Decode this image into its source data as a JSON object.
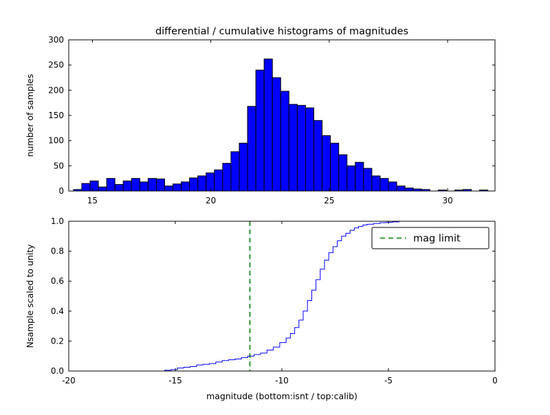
{
  "figure": {
    "background": "#ffffff"
  },
  "chart_data": [
    {
      "type": "bar",
      "subplot": "top",
      "title": "differential / cumulative histograms of magnitudes",
      "ylabel": "number of samples",
      "xlim": [
        14,
        32
      ],
      "ylim": [
        0,
        300
      ],
      "xtick_values": [
        15,
        20,
        25,
        30
      ],
      "xtick_labels": [
        "15",
        "20",
        "25",
        "30"
      ],
      "ytick_values": [
        0,
        50,
        100,
        150,
        200,
        250,
        300
      ],
      "ytick_labels": [
        "0",
        "50",
        "100",
        "150",
        "200",
        "250",
        "300"
      ],
      "grid": false,
      "bar_color": "#0000ff",
      "bar_edge_color": "#000000",
      "bin_width": 0.35,
      "bin_left_edges": [
        14.2,
        14.55,
        14.9,
        15.25,
        15.6,
        15.95,
        16.3,
        16.65,
        17.0,
        17.35,
        17.7,
        18.05,
        18.4,
        18.75,
        19.1,
        19.45,
        19.8,
        20.15,
        20.5,
        20.85,
        21.2,
        21.55,
        21.9,
        22.25,
        22.6,
        22.95,
        23.3,
        23.65,
        24.0,
        24.35,
        24.7,
        25.05,
        25.4,
        25.75,
        26.1,
        26.45,
        26.8,
        27.15,
        27.5,
        27.85,
        28.2,
        28.55,
        28.9,
        29.6,
        30.3,
        30.65,
        31.35
      ],
      "counts": [
        3,
        15,
        20,
        8,
        25,
        13,
        20,
        25,
        18,
        25,
        24,
        10,
        14,
        18,
        26,
        30,
        36,
        42,
        55,
        78,
        95,
        168,
        240,
        262,
        225,
        198,
        172,
        170,
        165,
        140,
        110,
        95,
        72,
        50,
        57,
        45,
        30,
        25,
        18,
        10,
        6,
        4,
        3,
        2,
        2,
        3,
        2
      ]
    },
    {
      "type": "line",
      "subplot": "bottom",
      "ylabel": "Nsample scaled to unity",
      "xlabel": "magnitude (bottom:isnt / top:calib)",
      "xlim": [
        -20,
        0
      ],
      "ylim": [
        0.0,
        1.0
      ],
      "xtick_values": [
        -20,
        -15,
        -10,
        -5,
        0
      ],
      "xtick_labels": [
        "-20",
        "-15",
        "-10",
        "-5",
        "0"
      ],
      "ytick_values": [
        0.0,
        0.2,
        0.4,
        0.6,
        0.8,
        1.0
      ],
      "ytick_labels": [
        "0.0",
        "0.2",
        "0.4",
        "0.6",
        "0.8",
        "1.0"
      ],
      "grid": false,
      "step": "post",
      "line_color": "#0000ff",
      "x": [
        -20,
        -15.5,
        -15.2,
        -14.9,
        -14.6,
        -14.3,
        -14.0,
        -13.7,
        -13.4,
        -13.1,
        -12.8,
        -12.5,
        -12.2,
        -11.9,
        -11.6,
        -11.3,
        -11.0,
        -10.7,
        -10.4,
        -10.1,
        -9.8,
        -9.6,
        -9.4,
        -9.2,
        -9.0,
        -8.8,
        -8.6,
        -8.4,
        -8.2,
        -8.0,
        -7.8,
        -7.6,
        -7.4,
        -7.2,
        -7.0,
        -6.8,
        -6.6,
        -6.4,
        -6.2,
        -6.0,
        -5.7,
        -5.4,
        -5.1,
        -4.8,
        -4.5,
        -4.0,
        0
      ],
      "y": [
        0,
        0.005,
        0.01,
        0.02,
        0.025,
        0.03,
        0.04,
        0.045,
        0.05,
        0.06,
        0.07,
        0.075,
        0.08,
        0.09,
        0.1,
        0.11,
        0.12,
        0.14,
        0.16,
        0.19,
        0.22,
        0.25,
        0.29,
        0.34,
        0.4,
        0.47,
        0.54,
        0.61,
        0.68,
        0.74,
        0.79,
        0.83,
        0.87,
        0.9,
        0.92,
        0.94,
        0.955,
        0.965,
        0.975,
        0.98,
        0.985,
        0.99,
        0.993,
        0.996,
        1.0,
        1.0,
        1.0
      ],
      "mag_limit": {
        "x": -11.5,
        "color": "#008000",
        "style": "dashed"
      },
      "legend": {
        "label": "mag limit",
        "position": "upper right"
      }
    }
  ]
}
